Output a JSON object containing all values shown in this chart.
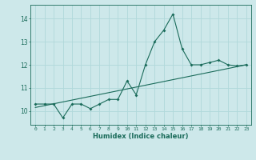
{
  "title": "",
  "xlabel": "Humidex (Indice chaleur)",
  "ylabel": "",
  "bg_color": "#cde8ea",
  "line_color": "#1a6b5a",
  "grid_color": "#b0d8da",
  "xlim": [
    -0.5,
    23.5
  ],
  "ylim": [
    9.4,
    14.6
  ],
  "yticks": [
    10,
    11,
    12,
    13,
    14
  ],
  "xticks": [
    0,
    1,
    2,
    3,
    4,
    5,
    6,
    7,
    8,
    9,
    10,
    11,
    12,
    13,
    14,
    15,
    16,
    17,
    18,
    19,
    20,
    21,
    22,
    23
  ],
  "data_x": [
    0,
    1,
    2,
    3,
    4,
    5,
    6,
    7,
    8,
    9,
    10,
    11,
    12,
    13,
    14,
    15,
    16,
    17,
    18,
    19,
    20,
    21,
    22,
    23
  ],
  "data_y": [
    10.3,
    10.3,
    10.3,
    9.7,
    10.3,
    10.3,
    10.1,
    10.3,
    10.5,
    10.5,
    11.3,
    10.7,
    12.0,
    13.0,
    13.5,
    14.2,
    12.7,
    12.0,
    12.0,
    12.1,
    12.2,
    12.0,
    11.95,
    12.0
  ],
  "trend_x": [
    0,
    23
  ],
  "trend_y": [
    10.15,
    12.0
  ]
}
